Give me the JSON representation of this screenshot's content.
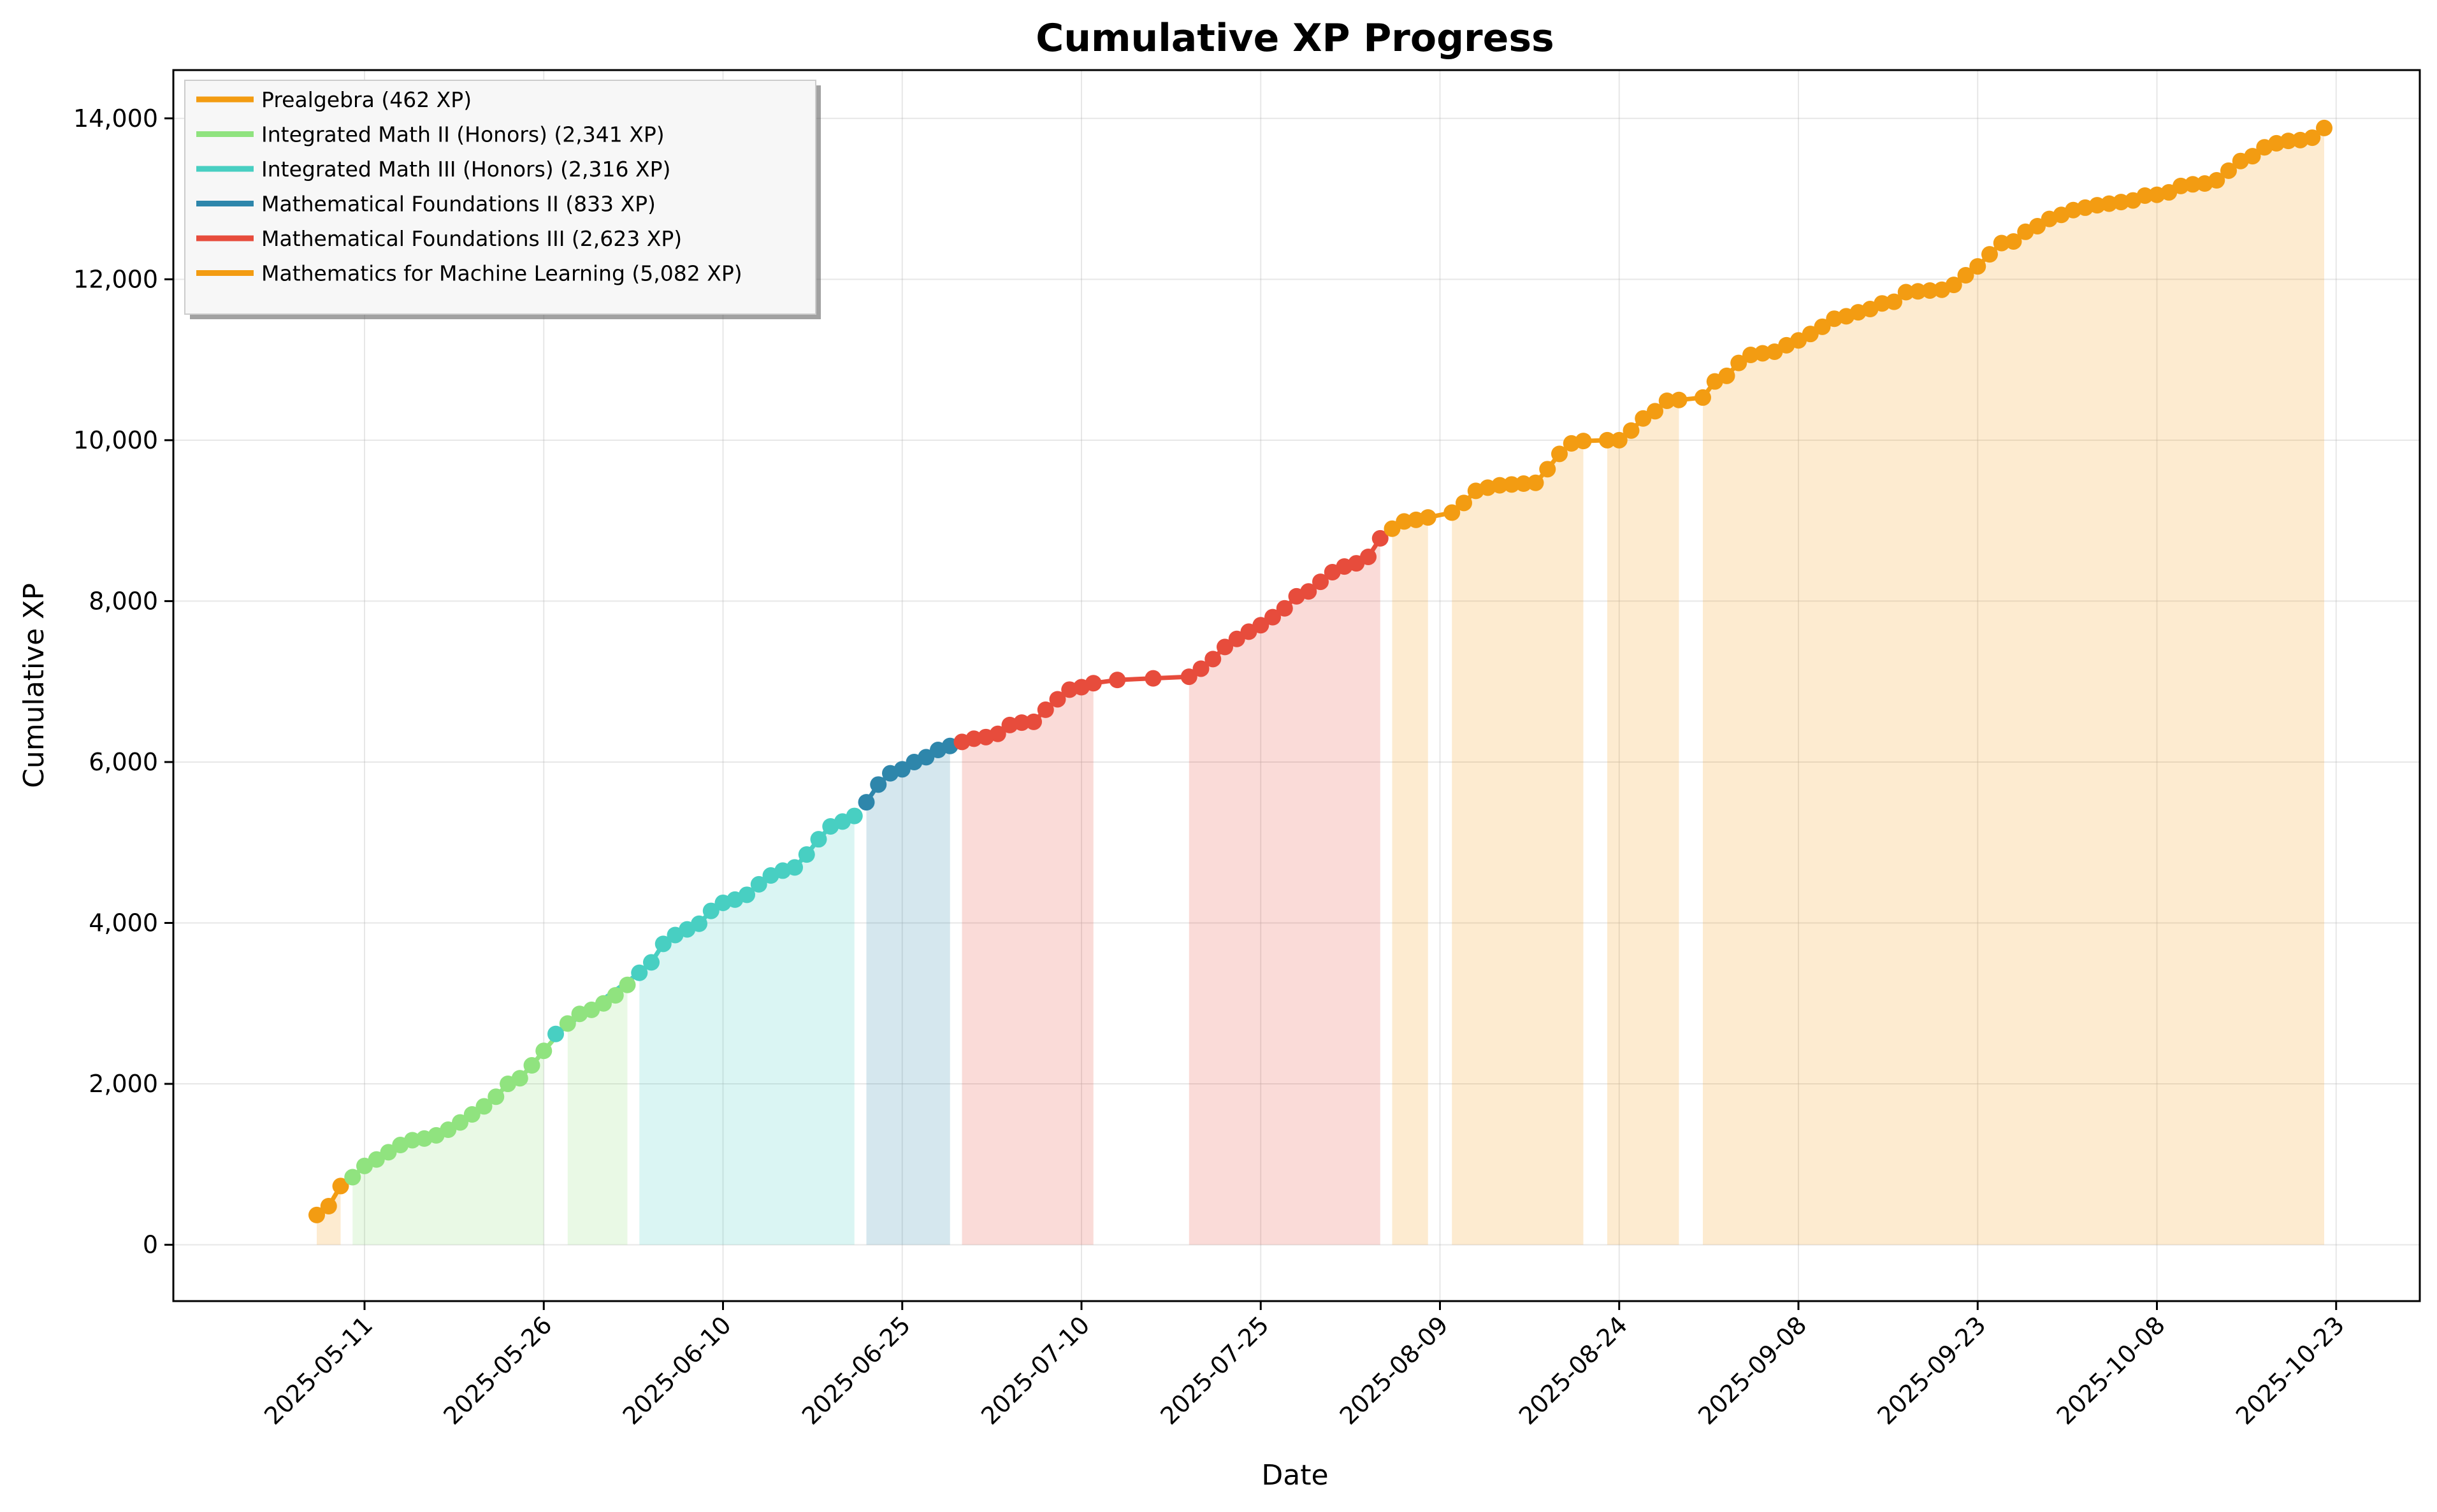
{
  "chart_data": {
    "type": "line",
    "title": "Cumulative XP Progress",
    "xlabel": "Date",
    "ylabel": "Cumulative XP",
    "x_type": "date",
    "xlim": [
      "2025-04-25",
      "2025-10-30"
    ],
    "ylim": [
      -700,
      14600
    ],
    "x_ticks": [
      "2025-05-11",
      "2025-05-26",
      "2025-06-10",
      "2025-06-25",
      "2025-07-10",
      "2025-07-25",
      "2025-08-09",
      "2025-08-24",
      "2025-09-08",
      "2025-09-23",
      "2025-10-08",
      "2025-10-23"
    ],
    "y_ticks": [
      0,
      2000,
      4000,
      6000,
      8000,
      10000,
      12000,
      14000
    ],
    "y_tick_labels": [
      "0",
      "2,000",
      "4,000",
      "6,000",
      "8,000",
      "10,000",
      "12,000",
      "14,000"
    ],
    "grid": true,
    "legend_position": "top-left",
    "series": [
      {
        "name": "Prealgebra (462 XP)",
        "color": "#f39c12",
        "points": [
          [
            "2025-05-07",
            370
          ],
          [
            "2025-05-08",
            480
          ],
          [
            "2025-05-09",
            730
          ]
        ]
      },
      {
        "name": "Integrated Math II (Honors) (2,341 XP)",
        "color": "#90e37f",
        "points": [
          [
            "2025-05-10",
            840
          ],
          [
            "2025-05-11",
            980
          ],
          [
            "2025-05-12",
            1060
          ],
          [
            "2025-05-13",
            1150
          ],
          [
            "2025-05-14",
            1240
          ],
          [
            "2025-05-15",
            1300
          ],
          [
            "2025-05-16",
            1320
          ],
          [
            "2025-05-17",
            1360
          ],
          [
            "2025-05-18",
            1430
          ],
          [
            "2025-05-19",
            1520
          ],
          [
            "2025-05-20",
            1620
          ],
          [
            "2025-05-21",
            1720
          ],
          [
            "2025-05-22",
            1840
          ],
          [
            "2025-05-23",
            2000
          ],
          [
            "2025-05-24",
            2070
          ],
          [
            "2025-05-25",
            2230
          ],
          [
            "2025-05-26",
            2410
          ],
          [
            "2025-05-28",
            2750
          ],
          [
            "2025-05-29",
            2870
          ],
          [
            "2025-05-30",
            2920
          ],
          [
            "2025-05-31",
            3000
          ],
          [
            "2025-06-01",
            3100
          ],
          [
            "2025-06-02",
            3230
          ]
        ]
      },
      {
        "name": "Integrated Math III (Honors) (2,316 XP)",
        "color": "#48cfc2",
        "points": [
          [
            "2025-05-27",
            2620
          ],
          [
            "2025-06-03",
            3380
          ],
          [
            "2025-06-04",
            3510
          ],
          [
            "2025-06-05",
            3740
          ],
          [
            "2025-06-06",
            3850
          ],
          [
            "2025-06-07",
            3920
          ],
          [
            "2025-06-08",
            3990
          ],
          [
            "2025-06-09",
            4150
          ],
          [
            "2025-06-10",
            4250
          ],
          [
            "2025-06-11",
            4290
          ],
          [
            "2025-06-12",
            4350
          ],
          [
            "2025-06-13",
            4480
          ],
          [
            "2025-06-14",
            4590
          ],
          [
            "2025-06-15",
            4650
          ],
          [
            "2025-06-16",
            4690
          ],
          [
            "2025-06-17",
            4850
          ],
          [
            "2025-06-18",
            5040
          ],
          [
            "2025-06-19",
            5200
          ],
          [
            "2025-06-20",
            5260
          ],
          [
            "2025-06-21",
            5330
          ]
        ]
      },
      {
        "name": "Mathematical Foundations II (833 XP)",
        "color": "#2e86ab",
        "points": [
          [
            "2025-06-22",
            5500
          ],
          [
            "2025-06-23",
            5720
          ],
          [
            "2025-06-24",
            5860
          ],
          [
            "2025-06-25",
            5910
          ],
          [
            "2025-06-26",
            6000
          ],
          [
            "2025-06-27",
            6060
          ],
          [
            "2025-06-28",
            6150
          ],
          [
            "2025-06-29",
            6200
          ]
        ]
      },
      {
        "name": "Mathematical Foundations III (2,623 XP)",
        "color": "#e74c3c",
        "points": [
          [
            "2025-06-30",
            6250
          ],
          [
            "2025-07-01",
            6290
          ],
          [
            "2025-07-02",
            6310
          ],
          [
            "2025-07-03",
            6350
          ],
          [
            "2025-07-04",
            6460
          ],
          [
            "2025-07-05",
            6490
          ],
          [
            "2025-07-06",
            6500
          ],
          [
            "2025-07-07",
            6650
          ],
          [
            "2025-07-08",
            6780
          ],
          [
            "2025-07-09",
            6900
          ],
          [
            "2025-07-10",
            6930
          ],
          [
            "2025-07-11",
            6980
          ],
          [
            "2025-07-13",
            7020
          ],
          [
            "2025-07-16",
            7040
          ],
          [
            "2025-07-19",
            7060
          ],
          [
            "2025-07-20",
            7160
          ],
          [
            "2025-07-21",
            7280
          ],
          [
            "2025-07-22",
            7430
          ],
          [
            "2025-07-23",
            7530
          ],
          [
            "2025-07-24",
            7620
          ],
          [
            "2025-07-25",
            7700
          ],
          [
            "2025-07-26",
            7800
          ],
          [
            "2025-07-27",
            7910
          ],
          [
            "2025-07-28",
            8060
          ],
          [
            "2025-07-29",
            8120
          ],
          [
            "2025-07-30",
            8240
          ],
          [
            "2025-07-31",
            8360
          ],
          [
            "2025-08-01",
            8430
          ],
          [
            "2025-08-02",
            8470
          ],
          [
            "2025-08-03",
            8550
          ],
          [
            "2025-08-04",
            8780
          ]
        ]
      },
      {
        "name": "Mathematics for Machine Learning (5,082 XP)",
        "color": "#f39c12",
        "points": [
          [
            "2025-08-05",
            8900
          ],
          [
            "2025-08-06",
            8990
          ],
          [
            "2025-08-07",
            9010
          ],
          [
            "2025-08-08",
            9040
          ],
          [
            "2025-08-10",
            9100
          ],
          [
            "2025-08-11",
            9220
          ],
          [
            "2025-08-12",
            9370
          ],
          [
            "2025-08-13",
            9410
          ],
          [
            "2025-08-14",
            9440
          ],
          [
            "2025-08-15",
            9450
          ],
          [
            "2025-08-16",
            9460
          ],
          [
            "2025-08-17",
            9470
          ],
          [
            "2025-08-18",
            9640
          ],
          [
            "2025-08-19",
            9830
          ],
          [
            "2025-08-20",
            9960
          ],
          [
            "2025-08-21",
            9990
          ],
          [
            "2025-08-23",
            10000
          ],
          [
            "2025-08-24",
            10000
          ],
          [
            "2025-08-25",
            10120
          ],
          [
            "2025-08-26",
            10270
          ],
          [
            "2025-08-27",
            10360
          ],
          [
            "2025-08-28",
            10490
          ],
          [
            "2025-08-29",
            10500
          ],
          [
            "2025-08-31",
            10530
          ],
          [
            "2025-09-01",
            10730
          ],
          [
            "2025-09-02",
            10800
          ],
          [
            "2025-09-03",
            10960
          ],
          [
            "2025-09-04",
            11060
          ],
          [
            "2025-09-05",
            11080
          ],
          [
            "2025-09-06",
            11100
          ],
          [
            "2025-09-07",
            11180
          ],
          [
            "2025-09-08",
            11240
          ],
          [
            "2025-09-09",
            11320
          ],
          [
            "2025-09-10",
            11410
          ],
          [
            "2025-09-11",
            11510
          ],
          [
            "2025-09-12",
            11540
          ],
          [
            "2025-09-13",
            11590
          ],
          [
            "2025-09-14",
            11630
          ],
          [
            "2025-09-15",
            11700
          ],
          [
            "2025-09-16",
            11720
          ],
          [
            "2025-09-17",
            11840
          ],
          [
            "2025-09-18",
            11850
          ],
          [
            "2025-09-19",
            11860
          ],
          [
            "2025-09-20",
            11870
          ],
          [
            "2025-09-21",
            11930
          ],
          [
            "2025-09-22",
            12050
          ],
          [
            "2025-09-23",
            12160
          ],
          [
            "2025-09-24",
            12310
          ],
          [
            "2025-09-25",
            12450
          ],
          [
            "2025-09-26",
            12470
          ],
          [
            "2025-09-27",
            12590
          ],
          [
            "2025-09-28",
            12660
          ],
          [
            "2025-09-29",
            12750
          ],
          [
            "2025-09-30",
            12800
          ],
          [
            "2025-10-01",
            12860
          ],
          [
            "2025-10-02",
            12890
          ],
          [
            "2025-10-03",
            12920
          ],
          [
            "2025-10-04",
            12940
          ],
          [
            "2025-10-05",
            12960
          ],
          [
            "2025-10-06",
            12980
          ],
          [
            "2025-10-07",
            13040
          ],
          [
            "2025-10-08",
            13050
          ],
          [
            "2025-10-09",
            13080
          ],
          [
            "2025-10-10",
            13160
          ],
          [
            "2025-10-11",
            13180
          ],
          [
            "2025-10-12",
            13190
          ],
          [
            "2025-10-13",
            13230
          ],
          [
            "2025-10-14",
            13350
          ],
          [
            "2025-10-15",
            13470
          ],
          [
            "2025-10-16",
            13530
          ],
          [
            "2025-10-17",
            13640
          ],
          [
            "2025-10-18",
            13690
          ],
          [
            "2025-10-19",
            13720
          ],
          [
            "2025-10-20",
            13730
          ],
          [
            "2025-10-21",
            13760
          ],
          [
            "2025-10-22",
            13880
          ]
        ]
      }
    ]
  }
}
